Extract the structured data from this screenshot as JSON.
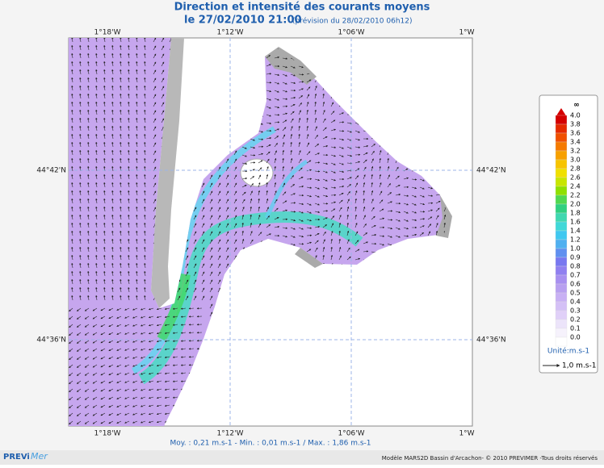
{
  "title": "Direction et intensité des courants moyens",
  "subtitle": {
    "date": "le 27/02/2010 21:00",
    "forecast": "(prévision du 28/02/2010 06h12)"
  },
  "map": {
    "lon_labels": [
      "1°18'W",
      "1°12'W",
      "1°06'W",
      "1°W"
    ],
    "lat_labels": [
      "44°42'N",
      "44°36'N"
    ]
  },
  "legend": {
    "infinity": "∞",
    "levels": [
      "4.0",
      "3.8",
      "3.6",
      "3.4",
      "3.2",
      "3.0",
      "2.8",
      "2.6",
      "2.4",
      "2.2",
      "2.0",
      "1.8",
      "1.6",
      "1.4",
      "1.2",
      "1.0",
      "0.9",
      "0.8",
      "0.7",
      "0.6",
      "0.5",
      "0.4",
      "0.3",
      "0.2",
      "0.1",
      "0.0"
    ],
    "unit": "Unité:m.s-1",
    "scale_arrow": "1,0 m.s-1"
  },
  "stats": "Moy. : 0,21 m.s-1  -  Min. : 0,01 m.s-1 / Max. : 1,86 m.s-1",
  "footer": "Modèle MARS2D Bassin d'Arcachon- © 2010 PREVIMER -Tous droits réservés",
  "logo": {
    "prefix": "PREVi",
    "suffix": "Mer"
  }
}
